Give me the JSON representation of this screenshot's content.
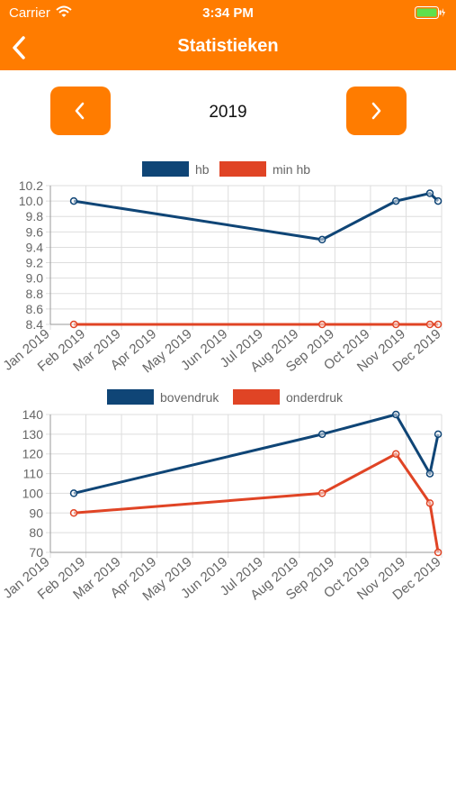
{
  "status_bar": {
    "carrier": "Carrier",
    "time": "3:34 PM"
  },
  "header": {
    "title": "Statistieken"
  },
  "year_nav": {
    "year": "2019"
  },
  "colors": {
    "header": "#ff7c00",
    "series_blue": "#0f4576",
    "series_red": "#e04425"
  },
  "chart_data": [
    {
      "type": "line",
      "x_ticks": [
        "Jan 2019",
        "Feb 2019",
        "Mar 2019",
        "Apr 2019",
        "May 2019",
        "Jun 2019",
        "Jul 2019",
        "Aug 2019",
        "Sep 2019",
        "Oct 2019",
        "Nov 2019",
        "Dec 2019"
      ],
      "ylim": [
        8.4,
        10.2
      ],
      "y_ticks": [
        "10.2",
        "10.0",
        "9.8",
        "9.6",
        "9.4",
        "9.2",
        "9.0",
        "8.8",
        "8.6",
        "8.4"
      ],
      "legend": "top",
      "grid": true,
      "series": [
        {
          "name": "hb",
          "color": "#0f4576",
          "x": [
            "2019-01-21",
            "2019-08-21",
            "2019-10-23",
            "2019-11-21",
            "2019-11-28"
          ],
          "values": [
            10.0,
            9.5,
            10.0,
            10.1,
            10.0
          ]
        },
        {
          "name": "min hb",
          "color": "#e04425",
          "x": [
            "2019-01-21",
            "2019-08-21",
            "2019-10-23",
            "2019-11-21",
            "2019-11-28"
          ],
          "values": [
            8.4,
            8.4,
            8.4,
            8.4,
            8.4
          ]
        }
      ]
    },
    {
      "type": "line",
      "x_ticks": [
        "Jan 2019",
        "Feb 2019",
        "Mar 2019",
        "Apr 2019",
        "May 2019",
        "Jun 2019",
        "Jul 2019",
        "Aug 2019",
        "Sep 2019",
        "Oct 2019",
        "Nov 2019",
        "Dec 2019"
      ],
      "ylim": [
        70,
        140
      ],
      "y_ticks": [
        "140",
        "130",
        "120",
        "110",
        "100",
        "90",
        "80",
        "70"
      ],
      "legend": "top",
      "grid": true,
      "series": [
        {
          "name": "bovendruk",
          "color": "#0f4576",
          "x": [
            "2019-01-21",
            "2019-08-21",
            "2019-10-23",
            "2019-11-21",
            "2019-11-28"
          ],
          "values": [
            100,
            130,
            140,
            110,
            130
          ]
        },
        {
          "name": "onderdruk",
          "color": "#e04425",
          "x": [
            "2019-01-21",
            "2019-08-21",
            "2019-10-23",
            "2019-11-21",
            "2019-11-28"
          ],
          "values": [
            90,
            100,
            120,
            95,
            70
          ]
        }
      ]
    }
  ]
}
